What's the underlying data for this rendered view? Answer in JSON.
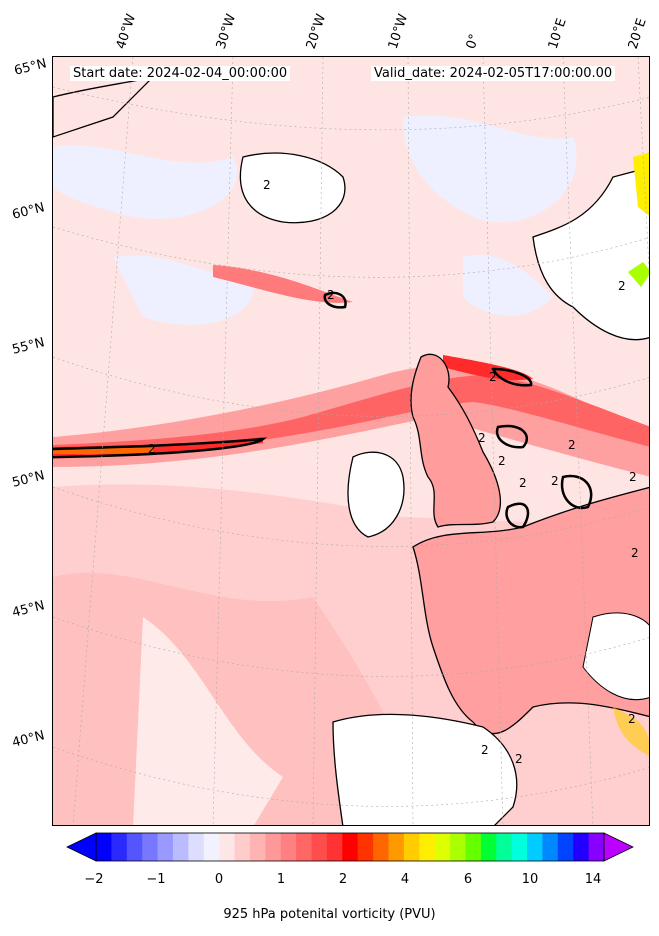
{
  "header": {
    "start_date": "Start date: 2024-02-04_00:00:00",
    "valid_date": "Valid_date: 2024-02-05T17:00:00.00"
  },
  "graticule": {
    "longitudes": [
      "40°W",
      "30°W",
      "20°W",
      "10°W",
      "0°",
      "10°E",
      "20°E"
    ],
    "latitudes": [
      "65°N",
      "60°N",
      "55°N",
      "50°N",
      "45°N",
      "40°N"
    ]
  },
  "contour_label": "2",
  "colorbar": {
    "title": "925 hPa potenital vorticity (PVU)",
    "ticks": [
      "−2",
      "−1",
      "0",
      "1",
      "2",
      "4",
      "6",
      "10",
      "14"
    ],
    "colors": [
      "#0000ff",
      "#2a2aff",
      "#5555ff",
      "#7777ff",
      "#9999ff",
      "#bbbbff",
      "#ddddff",
      "#f2f2ff",
      "#ffe6e6",
      "#ffcccc",
      "#ffb3b3",
      "#ff9999",
      "#ff8080",
      "#ff6666",
      "#ff4d4d",
      "#ff3333",
      "#ff0000",
      "#ff3300",
      "#ff6600",
      "#ff9900",
      "#ffcc00",
      "#ffee00",
      "#ddff00",
      "#aaff00",
      "#66ff00",
      "#00ff33",
      "#00ff99",
      "#00ffdd",
      "#00ccff",
      "#0088ff",
      "#0044ff",
      "#2200ff",
      "#8800ff"
    ],
    "extend_low_color": "#0000ff",
    "extend_high_color": "#bb00ff"
  },
  "palette": {
    "background": "#ffecec",
    "negative": "#eef0ff",
    "light": "#ffd6d6",
    "medium": "#ff9a9a",
    "strong": "#ff4040",
    "max": "#ff0000",
    "land_low": "#ffffff"
  }
}
